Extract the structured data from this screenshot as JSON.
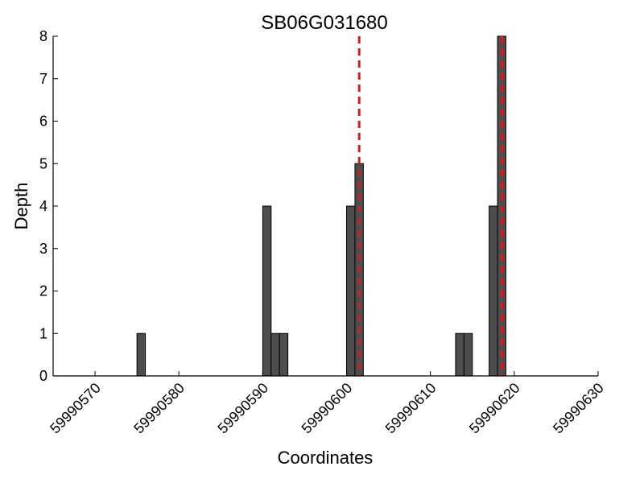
{
  "chart_data": {
    "type": "bar",
    "title": "SB06G031680",
    "xlabel": "Coordinates",
    "ylabel": "Depth",
    "xlim": [
      59990565,
      59990630
    ],
    "ylim": [
      0,
      8
    ],
    "x_ticks": [
      59990570,
      59990580,
      59990590,
      59990600,
      59990610,
      59990620,
      59990630
    ],
    "y_ticks": [
      0,
      1,
      2,
      3,
      4,
      5,
      6,
      7,
      8
    ],
    "bar_width": 1,
    "x": [
      59990575,
      59990590,
      59990591,
      59990592,
      59990600,
      59990601,
      59990613,
      59990614,
      59990617,
      59990618
    ],
    "values": [
      1,
      4,
      1,
      1,
      4,
      5,
      1,
      1,
      4,
      8
    ],
    "reference_lines": [
      59990601.5,
      59990618.5
    ],
    "grid": false,
    "colors": {
      "bar_fill": "#4d4d4d",
      "bar_edge": "#000000",
      "reference_line": "#e8141c",
      "axis": "#000000"
    }
  }
}
